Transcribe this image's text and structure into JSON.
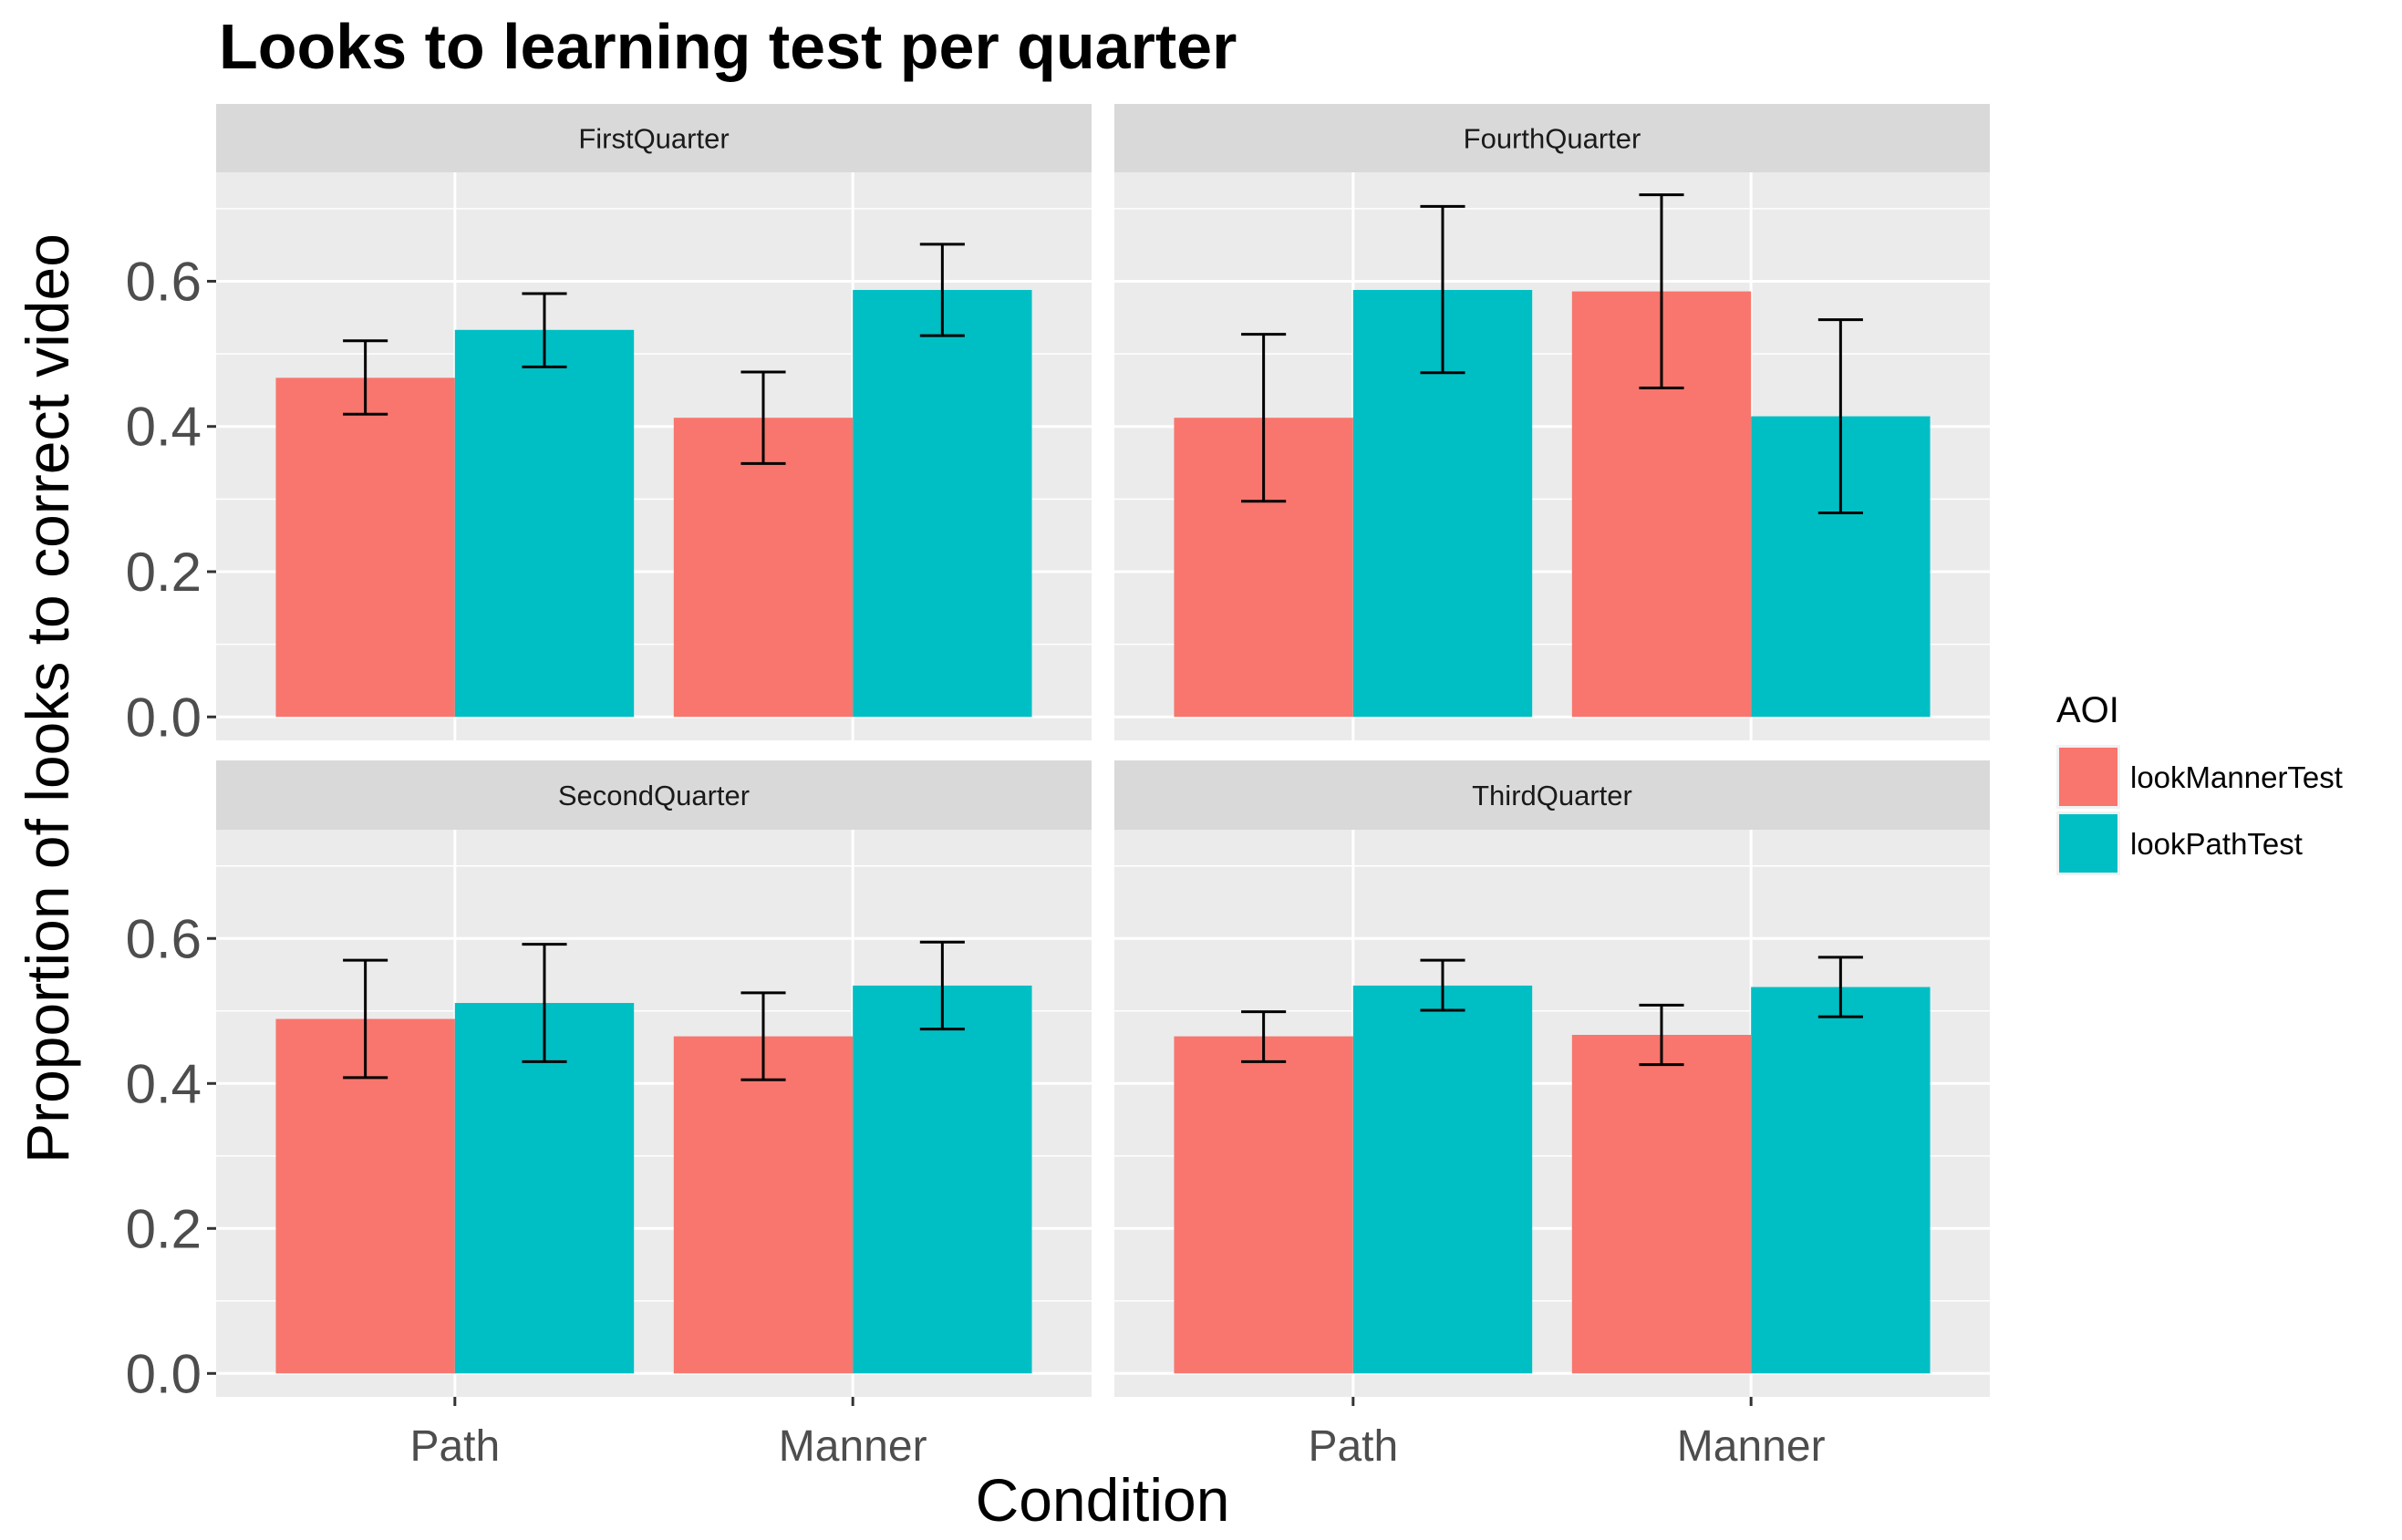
{
  "chart_data": {
    "type": "bar",
    "title": "Looks to learning test per quarter",
    "xlabel": "Condition",
    "ylabel": "Proportion of looks to correct video",
    "categories": [
      "Path",
      "Manner"
    ],
    "ylim": [
      0,
      0.75
    ],
    "yticks": [
      "0.0",
      "0.2",
      "0.4",
      "0.6"
    ],
    "grid": true,
    "legend": {
      "title": "AOI",
      "position": "right",
      "entries": [
        {
          "name": "lookMannerTest",
          "color": "#F8766D"
        },
        {
          "name": "lookPathTest",
          "color": "#00BFC4"
        }
      ]
    },
    "colors": {
      "panel_bg": "#EBEBEB",
      "strip_bg": "#D9D9D9",
      "grid_major": "#FFFFFF",
      "text": "#000000",
      "tick_text": "#4D4D4D"
    },
    "facets": [
      {
        "name": "FirstQuarter",
        "series": [
          {
            "name": "lookMannerTest",
            "values": [
              0.467,
              0.412
            ],
            "err_low": [
              0.417,
              0.349
            ],
            "err_high": [
              0.518,
              0.475
            ]
          },
          {
            "name": "lookPathTest",
            "values": [
              0.533,
              0.588
            ],
            "err_low": [
              0.482,
              0.525
            ],
            "err_high": [
              0.583,
              0.651
            ]
          }
        ]
      },
      {
        "name": "FourthQuarter",
        "series": [
          {
            "name": "lookMannerTest",
            "values": [
              0.412,
              0.586
            ],
            "err_low": [
              0.297,
              0.453
            ],
            "err_high": [
              0.527,
              0.719
            ]
          },
          {
            "name": "lookPathTest",
            "values": [
              0.588,
              0.414
            ],
            "err_low": [
              0.474,
              0.281
            ],
            "err_high": [
              0.703,
              0.547
            ]
          }
        ]
      },
      {
        "name": "SecondQuarter",
        "series": [
          {
            "name": "lookMannerTest",
            "values": [
              0.489,
              0.465
            ],
            "err_low": [
              0.408,
              0.405
            ],
            "err_high": [
              0.57,
              0.525
            ]
          },
          {
            "name": "lookPathTest",
            "values": [
              0.511,
              0.535
            ],
            "err_low": [
              0.43,
              0.475
            ],
            "err_high": [
              0.592,
              0.595
            ]
          }
        ]
      },
      {
        "name": "ThirdQuarter",
        "series": [
          {
            "name": "lookMannerTest",
            "values": [
              0.465,
              0.467
            ],
            "err_low": [
              0.43,
              0.426
            ],
            "err_high": [
              0.499,
              0.508
            ]
          },
          {
            "name": "lookPathTest",
            "values": [
              0.535,
              0.533
            ],
            "err_low": [
              0.501,
              0.492
            ],
            "err_high": [
              0.57,
              0.574
            ]
          }
        ]
      }
    ]
  }
}
